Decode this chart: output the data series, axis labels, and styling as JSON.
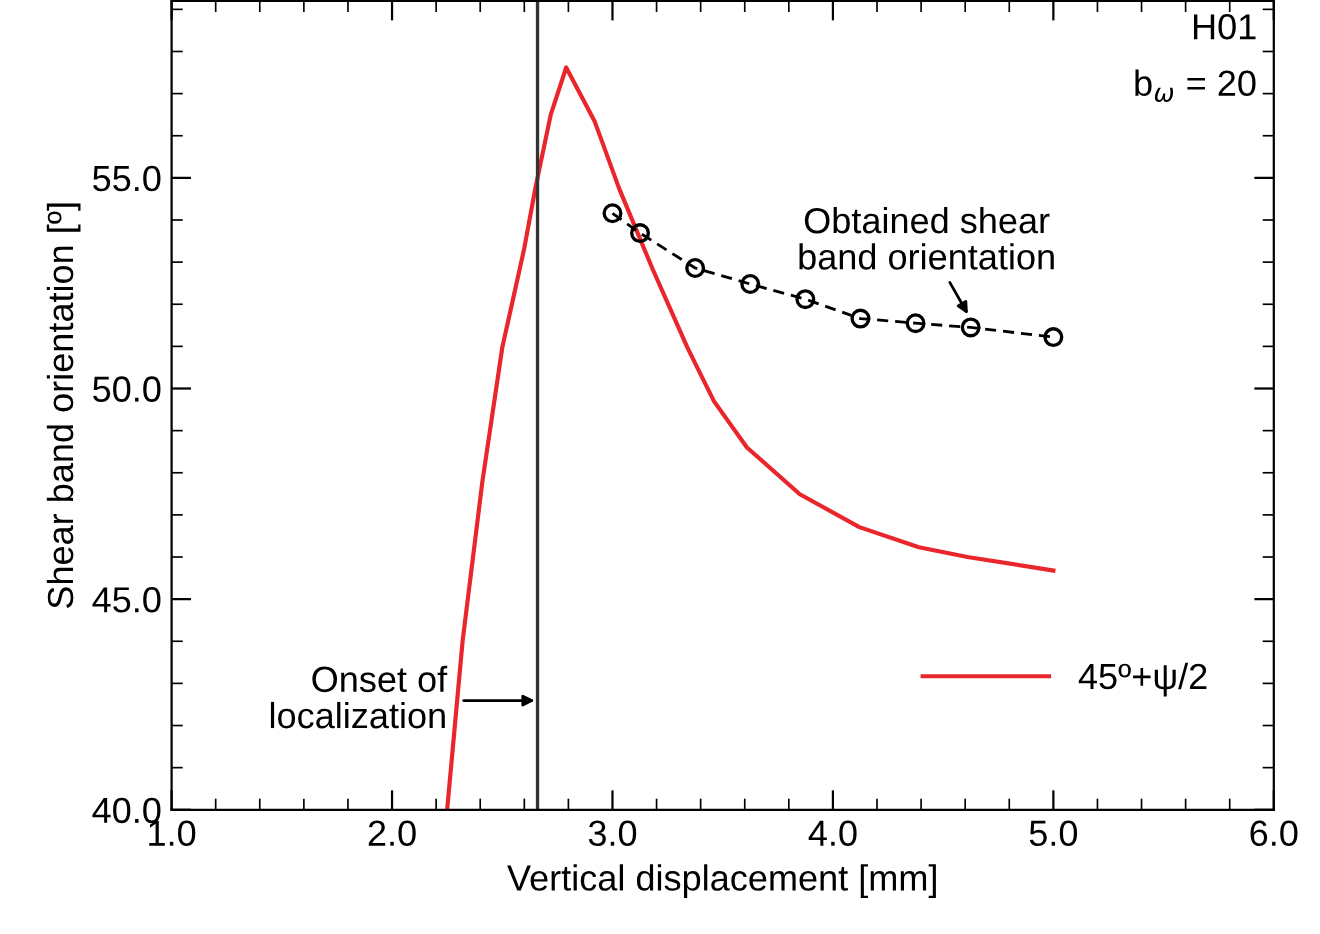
{
  "chart_data": {
    "type": "line",
    "xlabel": "Vertical displacement [mm]",
    "ylabel": "Shear band orientation [º]",
    "xlim": [
      1.0,
      6.0
    ],
    "xticks": [
      {
        "value": 1.0,
        "label": "1.0"
      },
      {
        "value": 2.0,
        "label": "2.0"
      },
      {
        "value": 3.0,
        "label": "3.0"
      },
      {
        "value": 4.0,
        "label": "4.0"
      },
      {
        "value": 5.0,
        "label": "5.0"
      },
      {
        "value": 6.0,
        "label": "6.0"
      }
    ],
    "ylim": [
      40.0,
      59.2
    ],
    "yticks": [
      {
        "value": 40.0,
        "label": "40.0"
      },
      {
        "value": 45.0,
        "label": "45.0"
      },
      {
        "value": 50.0,
        "label": "50.0"
      },
      {
        "value": 55.0,
        "label": "55.0"
      }
    ],
    "grid": false,
    "legend": "bottom right",
    "series": [
      {
        "name": "45º+ψ/2",
        "color": "#e8262b",
        "line_style": "solid",
        "marker": "none",
        "x": [
          2.25,
          2.32,
          2.41,
          2.5,
          2.6,
          2.65,
          2.72,
          2.79,
          2.92,
          3.03,
          3.18,
          3.34,
          3.46,
          3.61,
          3.85,
          4.12,
          4.39,
          4.61,
          5.0
        ],
        "values": [
          40.0,
          44.0,
          47.8,
          50.97,
          53.33,
          54.75,
          56.5,
          57.62,
          56.33,
          54.75,
          52.86,
          50.97,
          49.7,
          48.6,
          47.49,
          46.71,
          46.23,
          46.0,
          45.68
        ]
      },
      {
        "color": "#000000",
        "line_style": "dashed",
        "marker": "circle",
        "x": [
          3.0,
          3.125,
          3.375,
          3.625,
          3.875,
          4.125,
          4.375,
          4.625,
          5.0
        ],
        "values": [
          54.16,
          53.69,
          52.86,
          52.48,
          52.12,
          51.66,
          51.55,
          51.45,
          51.22
        ]
      }
    ],
    "ref_lines": [
      {
        "axis": "x",
        "value": 2.66,
        "color": "#333333",
        "line_style": "solid"
      }
    ],
    "annotations": [
      "H01",
      "b$_{ω}$ = 20",
      {
        "text": "Obtained shear\nband orientation",
        "x": 4.625,
        "y": 51.45
      },
      "Onset of\nlocalization"
    ]
  }
}
